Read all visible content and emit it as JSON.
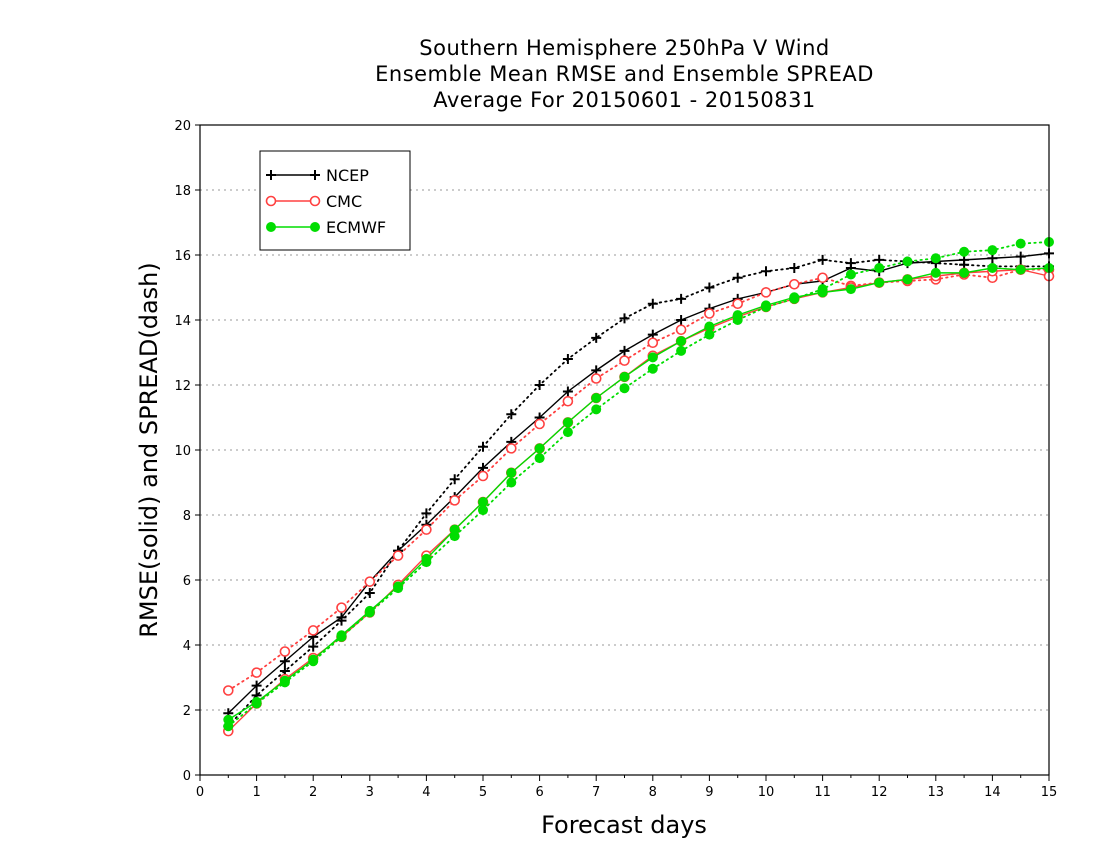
{
  "chart_data": {
    "type": "line",
    "title": [
      "Southern Hemisphere 250hPa V Wind",
      "Ensemble Mean RMSE and Ensemble SPREAD",
      "Average For 20150601 - 20150831"
    ],
    "xlabel": "Forecast days",
    "ylabel": "RMSE(solid) and SPREAD(dash)",
    "xlim": [
      0,
      15
    ],
    "ylim": [
      0,
      20
    ],
    "xticks": [
      "0",
      "1",
      "2",
      "3",
      "4",
      "5",
      "6",
      "7",
      "8",
      "9",
      "10",
      "11",
      "12",
      "13",
      "14",
      "15"
    ],
    "yticks": [
      "0",
      "2",
      "4",
      "6",
      "8",
      "10",
      "12",
      "14",
      "16",
      "18",
      "20"
    ],
    "grid": true,
    "legend_position": "top-left",
    "x": [
      0.5,
      1,
      1.5,
      2,
      2.5,
      3,
      3.5,
      4,
      4.5,
      5,
      5.5,
      6,
      6.5,
      7,
      7.5,
      8,
      8.5,
      9,
      9.5,
      10,
      10.5,
      11,
      11.5,
      12,
      12.5,
      13,
      13.5,
      14,
      14.5,
      15
    ],
    "series": [
      {
        "name": "NCEP",
        "color": "#000000",
        "marker": "plus",
        "rmse": [
          1.9,
          2.75,
          3.5,
          4.25,
          4.85,
          5.95,
          6.9,
          7.7,
          8.55,
          9.45,
          10.25,
          11.0,
          11.8,
          12.45,
          13.05,
          13.55,
          14.0,
          14.35,
          14.65,
          14.85,
          15.1,
          15.2,
          15.6,
          15.5,
          15.75,
          15.8,
          15.85,
          15.9,
          15.95,
          16.05
        ],
        "spread": [
          1.5,
          2.45,
          3.2,
          3.95,
          4.75,
          5.6,
          6.9,
          8.05,
          9.1,
          10.1,
          11.1,
          12.0,
          12.8,
          13.45,
          14.05,
          14.5,
          14.65,
          15.0,
          15.3,
          15.5,
          15.6,
          15.85,
          15.75,
          15.85,
          15.8,
          15.75,
          15.7,
          15.65,
          15.65,
          15.65
        ]
      },
      {
        "name": "CMC",
        "color": "#ff4040",
        "marker": "circle",
        "rmse": [
          1.35,
          2.2,
          2.95,
          3.6,
          4.25,
          5.0,
          5.85,
          6.75,
          7.55,
          8.4,
          9.3,
          10.05,
          10.85,
          11.6,
          12.25,
          12.9,
          13.35,
          13.75,
          14.1,
          14.4,
          14.65,
          14.85,
          15.0,
          15.15,
          15.25,
          15.35,
          15.45,
          15.5,
          15.55,
          15.35
        ],
        "spread": [
          2.6,
          3.15,
          3.8,
          4.45,
          5.15,
          5.95,
          6.75,
          7.55,
          8.45,
          9.2,
          10.05,
          10.8,
          11.5,
          12.2,
          12.75,
          13.3,
          13.7,
          14.2,
          14.5,
          14.85,
          15.1,
          15.3,
          15.05,
          15.15,
          15.2,
          15.25,
          15.4,
          15.3,
          15.55,
          15.55
        ]
      },
      {
        "name": "ECMWF",
        "color": "#00dd00",
        "marker": "dot",
        "rmse": [
          1.7,
          2.25,
          2.9,
          3.55,
          4.3,
          5.05,
          5.8,
          6.65,
          7.55,
          8.4,
          9.3,
          10.05,
          10.85,
          11.6,
          12.25,
          12.85,
          13.35,
          13.8,
          14.15,
          14.45,
          14.7,
          14.85,
          14.95,
          15.15,
          15.25,
          15.45,
          15.45,
          15.6,
          15.55,
          15.6
        ],
        "spread": [
          1.5,
          2.2,
          2.85,
          3.5,
          4.25,
          5.0,
          5.75,
          6.55,
          7.35,
          8.15,
          9.0,
          9.75,
          10.55,
          11.25,
          11.9,
          12.5,
          13.05,
          13.55,
          14.0,
          14.4,
          14.65,
          14.95,
          15.4,
          15.6,
          15.8,
          15.9,
          16.1,
          16.15,
          16.35,
          16.4
        ]
      }
    ]
  }
}
